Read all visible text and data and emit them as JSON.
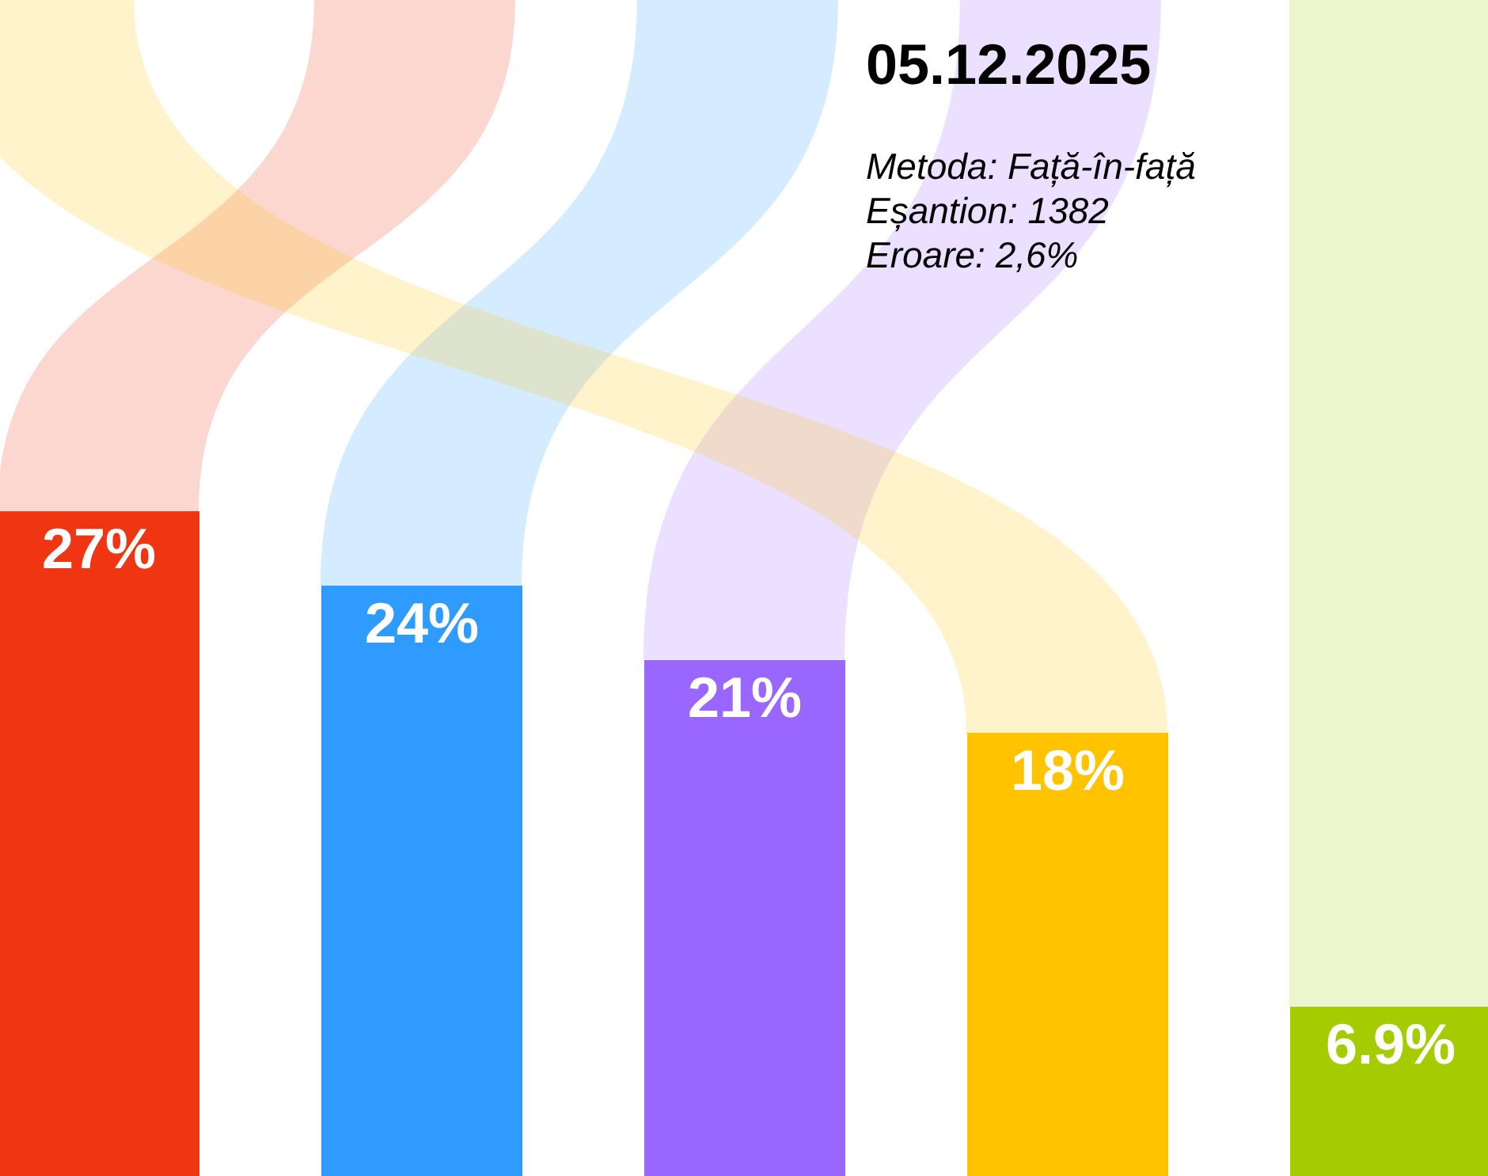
{
  "chart_data": {
    "type": "bar",
    "title": "05.12.2025",
    "categories": [
      null,
      null,
      null,
      null,
      null
    ],
    "values": [
      27,
      24,
      21,
      18,
      6.9
    ],
    "colors": [
      "#f03512",
      "#2f9bff",
      "#9966ff",
      "#ffc300",
      "#a4cc00"
    ],
    "value_labels": [
      "27%",
      "24%",
      "21%",
      "18%",
      "6.9%"
    ],
    "ylim": [
      0,
      47.8
    ],
    "annotations": [
      "Metoda: Față-în-față",
      "Eșantion: 1382",
      "Eroare: 2,6%"
    ],
    "grid": false,
    "legend": false,
    "tick_labels": false
  }
}
